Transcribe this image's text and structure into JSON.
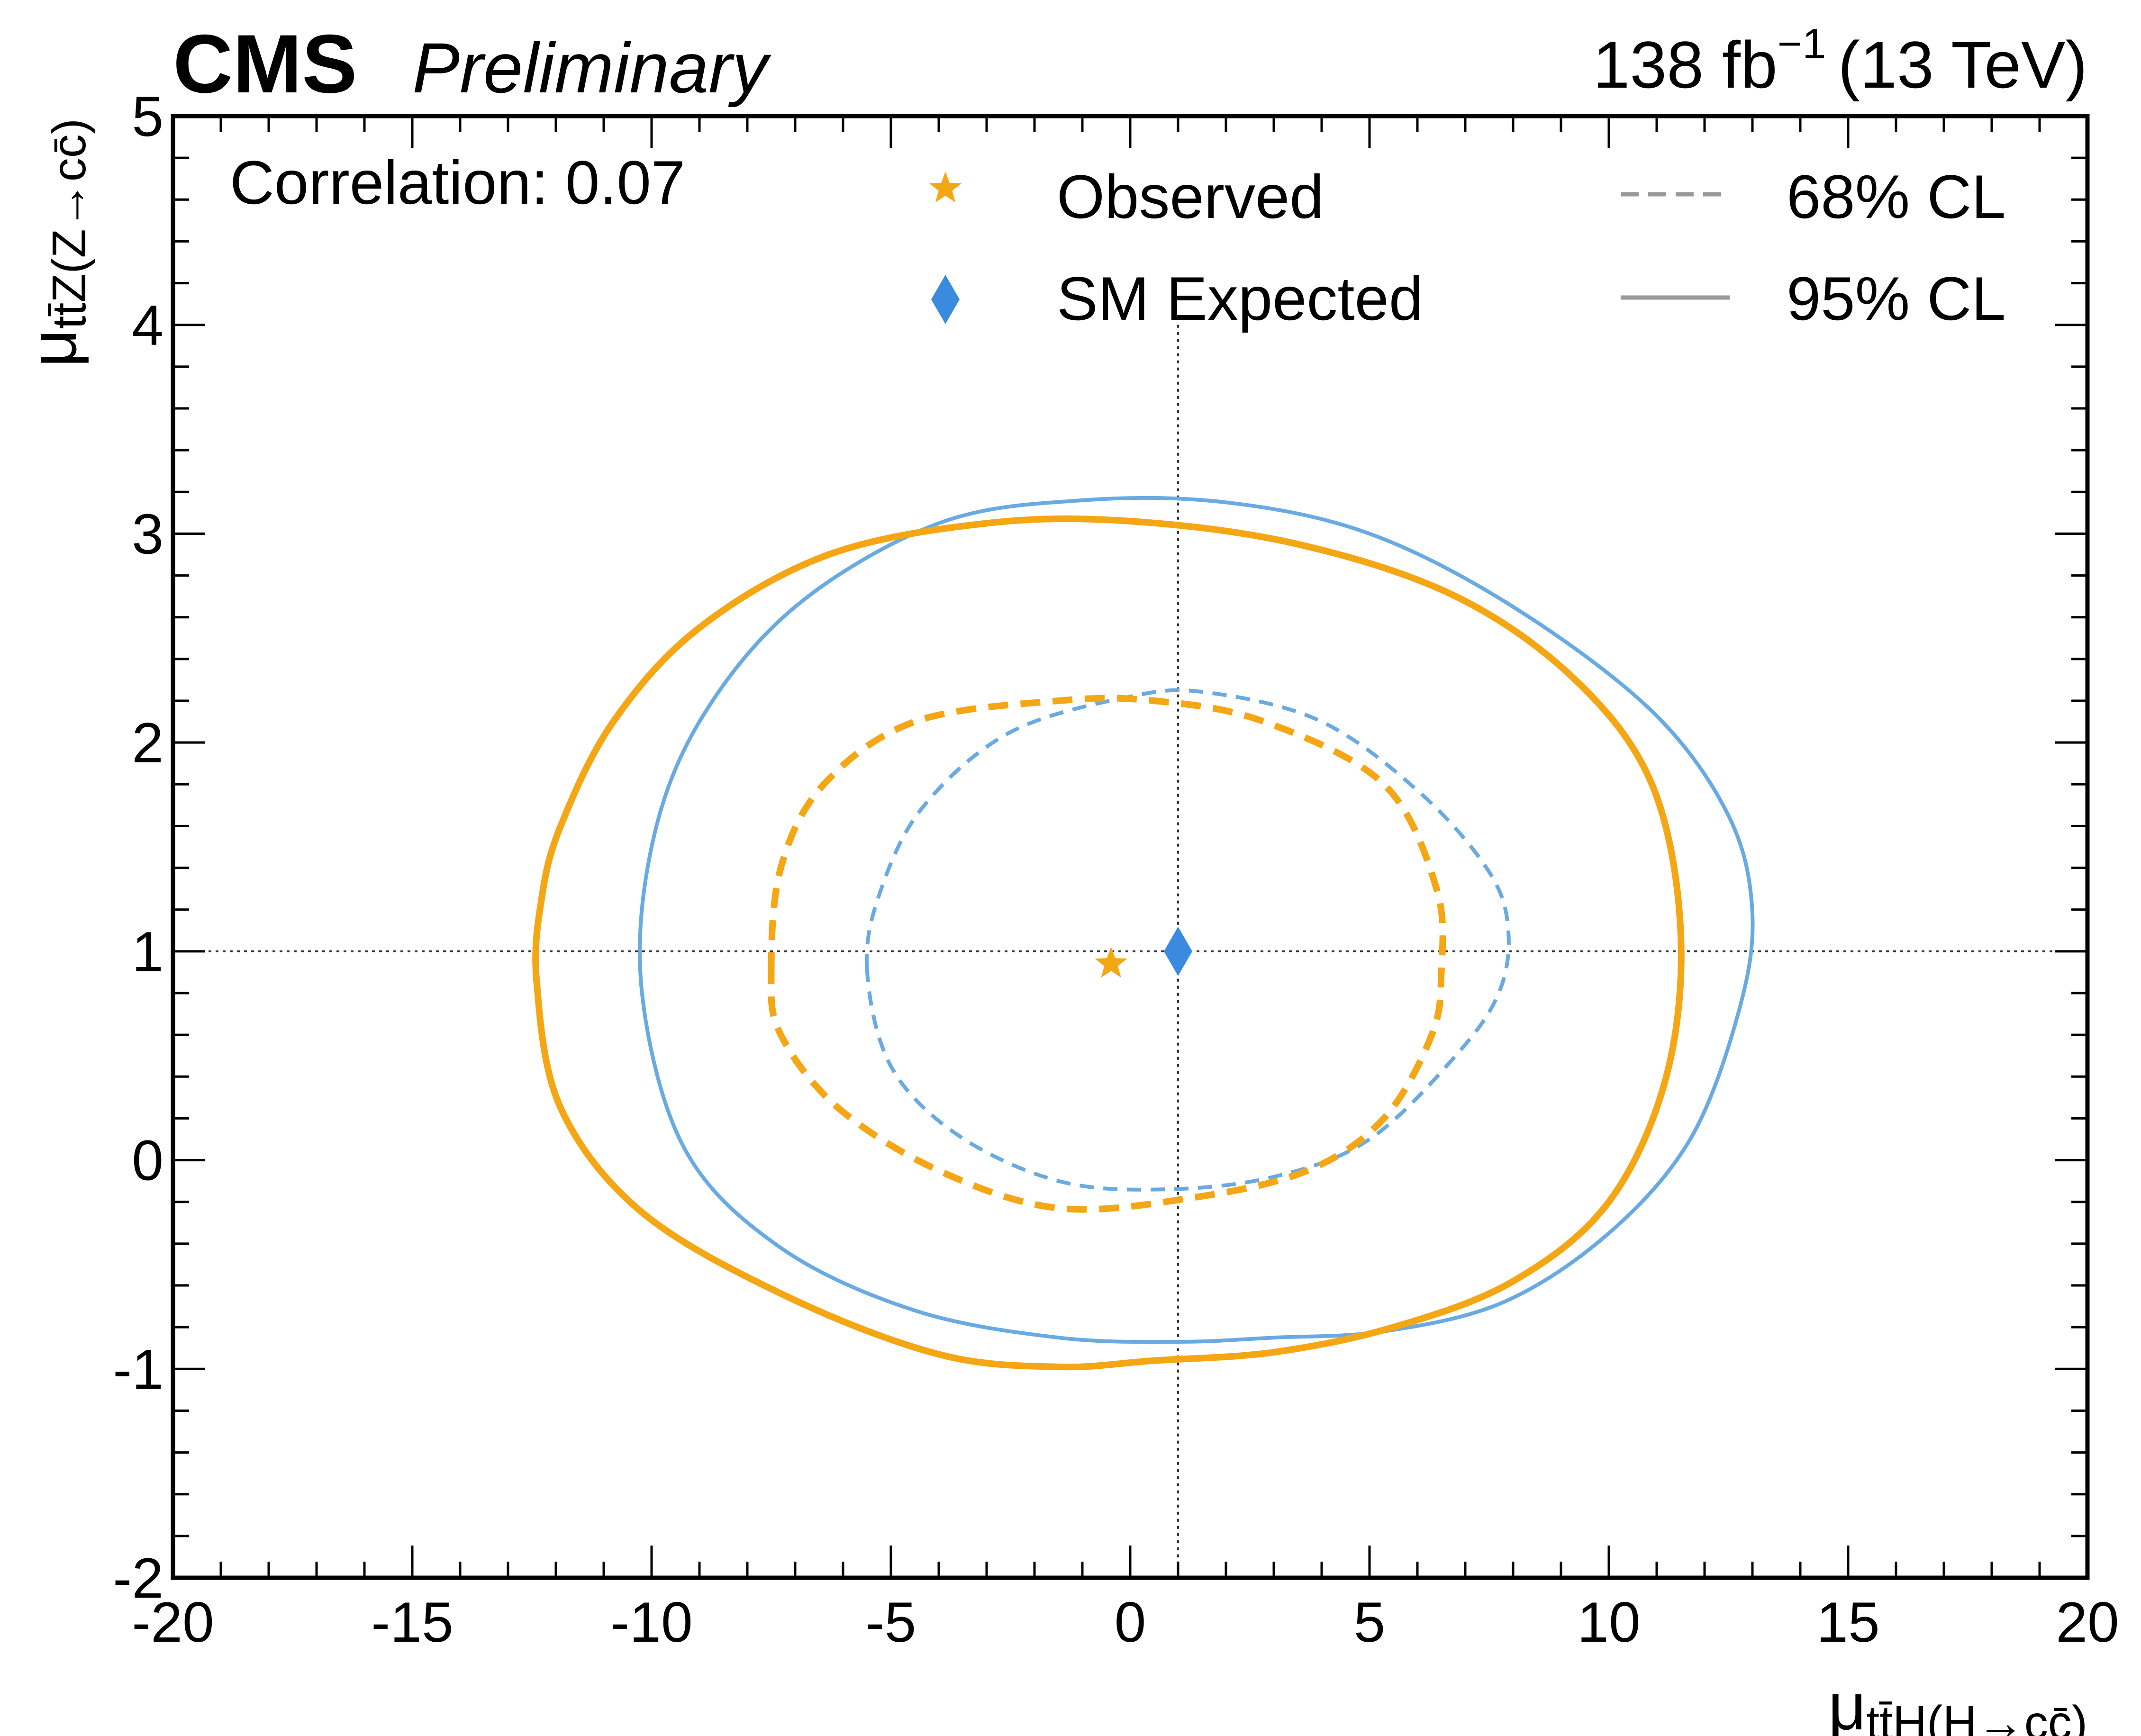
{
  "header": {
    "experiment": "CMS",
    "status": "Preliminary",
    "lumi_value": "138 fb",
    "lumi_exp": "−1",
    "lumi_energy": "(13 TeV)"
  },
  "annotation": {
    "correlation": "Correlation: 0.07"
  },
  "legend": {
    "observed": "Observed",
    "expected": "SM Expected",
    "cl68": "68% CL",
    "cl95": "95% CL"
  },
  "colors": {
    "observed": "#f5a614",
    "expected": "#6aaae2",
    "expected_marker": "#3a8be0",
    "legend_line": "#999999",
    "axis": "#000000"
  },
  "chart_data": {
    "type": "scatter",
    "xlabel": {
      "mu": "μ",
      "sub": "tt̄H(H→cc̄)"
    },
    "ylabel": {
      "mu": "μ",
      "sub": "tt̄Z(Z→cc̄)"
    },
    "xlim": [
      -20,
      20
    ],
    "ylim": [
      -2,
      5
    ],
    "xticks": [
      -20,
      -15,
      -10,
      -5,
      0,
      5,
      10,
      15,
      20
    ],
    "yticks": [
      -2,
      -1,
      0,
      1,
      2,
      3,
      4,
      5
    ],
    "xtick_labels": [
      "-20",
      "-15",
      "-10",
      "-5",
      "0",
      "5",
      "10",
      "15",
      "20"
    ],
    "ytick_labels": [
      "-2",
      "-1",
      "0",
      "1",
      "2",
      "3",
      "4",
      "5"
    ],
    "reference_lines": {
      "x": 1,
      "y": 1
    },
    "points": {
      "observed": {
        "x": -0.4,
        "y": 0.94
      },
      "sm_expected": {
        "x": 1.0,
        "y": 1.0
      }
    },
    "contours": {
      "observed_95": [
        [
          -12.4,
          0.85
        ],
        [
          -12.3,
          1.25
        ],
        [
          -11.9,
          1.6
        ],
        [
          -10.8,
          2.1
        ],
        [
          -9.0,
          2.55
        ],
        [
          -6.3,
          2.9
        ],
        [
          -3.0,
          3.05
        ],
        [
          0.0,
          3.06
        ],
        [
          3.5,
          2.95
        ],
        [
          6.8,
          2.7
        ],
        [
          9.3,
          2.3
        ],
        [
          10.9,
          1.8
        ],
        [
          11.5,
          1.1
        ],
        [
          11.2,
          0.4
        ],
        [
          10.0,
          -0.2
        ],
        [
          8.0,
          -0.58
        ],
        [
          5.5,
          -0.8
        ],
        [
          3.0,
          -0.92
        ],
        [
          0.5,
          -0.96
        ],
        [
          -1.5,
          -0.99
        ],
        [
          -4.0,
          -0.93
        ],
        [
          -7.2,
          -0.65
        ],
        [
          -10.2,
          -0.25
        ],
        [
          -11.9,
          0.25
        ]
      ],
      "expected_95": [
        [
          -10.2,
          0.8
        ],
        [
          -10.0,
          1.5
        ],
        [
          -9.0,
          2.1
        ],
        [
          -7.0,
          2.65
        ],
        [
          -4.0,
          3.05
        ],
        [
          -1.0,
          3.16
        ],
        [
          2.0,
          3.15
        ],
        [
          5.0,
          3.0
        ],
        [
          8.0,
          2.65
        ],
        [
          10.9,
          2.15
        ],
        [
          12.5,
          1.65
        ],
        [
          13.0,
          1.18
        ],
        [
          12.7,
          0.7
        ],
        [
          11.7,
          0.1
        ],
        [
          10.0,
          -0.35
        ],
        [
          7.8,
          -0.68
        ],
        [
          5.3,
          -0.82
        ],
        [
          3.0,
          -0.85
        ],
        [
          1.0,
          -0.87
        ],
        [
          -1.5,
          -0.85
        ],
        [
          -4.5,
          -0.72
        ],
        [
          -7.3,
          -0.42
        ],
        [
          -9.3,
          0.05
        ]
      ],
      "observed_68": [
        [
          -7.5,
          0.9
        ],
        [
          -7.3,
          1.4
        ],
        [
          -6.4,
          1.8
        ],
        [
          -4.5,
          2.1
        ],
        [
          -1.5,
          2.2
        ],
        [
          0.5,
          2.2
        ],
        [
          2.8,
          2.1
        ],
        [
          5.3,
          1.8
        ],
        [
          6.4,
          1.3
        ],
        [
          6.5,
          0.9
        ],
        [
          6.3,
          0.6
        ],
        [
          5.3,
          0.2
        ],
        [
          3.7,
          -0.05
        ],
        [
          1.3,
          -0.18
        ],
        [
          -1.5,
          -0.23
        ],
        [
          -4.0,
          -0.05
        ],
        [
          -6.1,
          0.25
        ],
        [
          -7.3,
          0.6
        ]
      ],
      "expected_68": [
        [
          -5.5,
          0.92
        ],
        [
          -5.2,
          1.3
        ],
        [
          -4.3,
          1.7
        ],
        [
          -2.5,
          2.05
        ],
        [
          0.0,
          2.22
        ],
        [
          1.6,
          2.24
        ],
        [
          4.0,
          2.1
        ],
        [
          6.1,
          1.75
        ],
        [
          7.5,
          1.38
        ],
        [
          7.9,
          1.1
        ],
        [
          7.7,
          0.8
        ],
        [
          6.8,
          0.5
        ],
        [
          5.0,
          0.1
        ],
        [
          3.0,
          -0.08
        ],
        [
          0.7,
          -0.14
        ],
        [
          -1.5,
          -0.1
        ],
        [
          -3.6,
          0.12
        ],
        [
          -5.0,
          0.45
        ]
      ]
    }
  }
}
